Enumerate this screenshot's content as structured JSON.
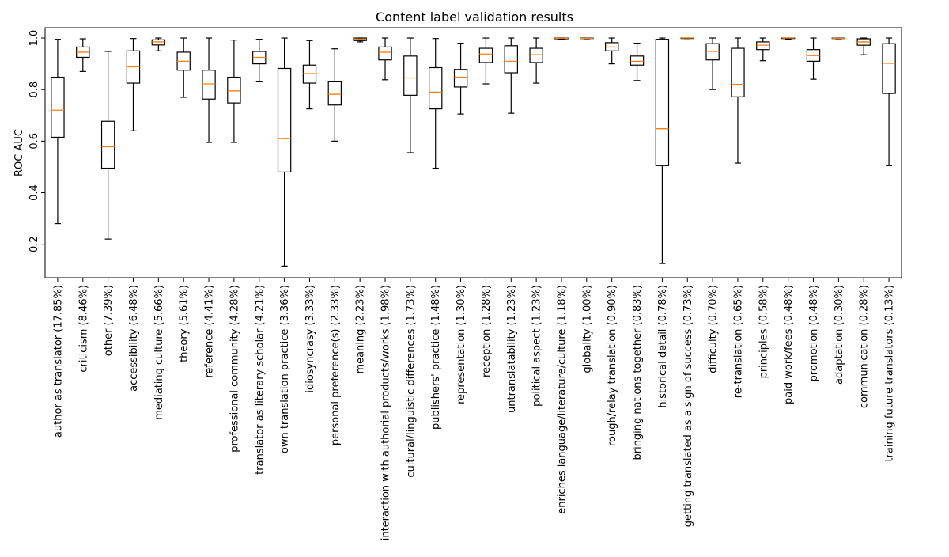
{
  "chart_data": {
    "type": "boxplot",
    "title": "Content label validation results",
    "xlabel": "",
    "ylabel": "ROC AUC",
    "ylim": [
      0.07,
      1.04
    ],
    "yticks": [
      0.2,
      0.4,
      0.6,
      0.8,
      1.0
    ],
    "ytick_labels": [
      "0.2",
      "0.4",
      "0.6",
      "0.8",
      "1.0"
    ],
    "grid": false,
    "colors": {
      "box": "#000000",
      "median": "#ff7f0e"
    },
    "boxes": [
      {
        "label": "author as translator (17.85%)",
        "whislo": 0.28,
        "q1": 0.615,
        "med": 0.72,
        "q3": 0.848,
        "whishi": 0.995
      },
      {
        "label": "criticism (8.46%)",
        "whislo": 0.87,
        "q1": 0.925,
        "med": 0.945,
        "q3": 0.965,
        "whishi": 0.997
      },
      {
        "label": "other (7.39%)",
        "whislo": 0.22,
        "q1": 0.495,
        "med": 0.578,
        "q3": 0.677,
        "whishi": 0.948
      },
      {
        "label": "accessibility (6.48%)",
        "whislo": 0.64,
        "q1": 0.825,
        "med": 0.888,
        "q3": 0.95,
        "whishi": 0.998
      },
      {
        "label": "mediating culture (5.66%)",
        "whislo": 0.95,
        "q1": 0.973,
        "med": 0.985,
        "q3": 0.993,
        "whishi": 1.0
      },
      {
        "label": "theory (5.61%)",
        "whislo": 0.77,
        "q1": 0.875,
        "med": 0.91,
        "q3": 0.945,
        "whishi": 1.0
      },
      {
        "label": "reference (4.41%)",
        "whislo": 0.595,
        "q1": 0.763,
        "med": 0.822,
        "q3": 0.875,
        "whishi": 1.0
      },
      {
        "label": "professional community (4.28%)",
        "whislo": 0.595,
        "q1": 0.748,
        "med": 0.795,
        "q3": 0.848,
        "whishi": 0.992
      },
      {
        "label": "translator as literary scholar (4.21%)",
        "whislo": 0.83,
        "q1": 0.9,
        "med": 0.925,
        "q3": 0.948,
        "whishi": 0.995
      },
      {
        "label": "own translation practice (3.36%)",
        "whislo": 0.115,
        "q1": 0.48,
        "med": 0.61,
        "q3": 0.882,
        "whishi": 1.0
      },
      {
        "label": "idiosyncrasy (3.33%)",
        "whislo": 0.725,
        "q1": 0.825,
        "med": 0.862,
        "q3": 0.895,
        "whishi": 0.99
      },
      {
        "label": "personal preference(s) (2.33%)",
        "whislo": 0.6,
        "q1": 0.74,
        "med": 0.782,
        "q3": 0.83,
        "whishi": 0.958
      },
      {
        "label": "meaning (2.23%)",
        "whislo": 0.985,
        "q1": 0.99,
        "med": 0.995,
        "q3": 1.0,
        "whishi": 1.0
      },
      {
        "label": "interaction with authorial products/works (1.98%)",
        "whislo": 0.838,
        "q1": 0.915,
        "med": 0.945,
        "q3": 0.965,
        "whishi": 1.0
      },
      {
        "label": "cultural/linguistic differences (1.73%)",
        "whislo": 0.555,
        "q1": 0.778,
        "med": 0.845,
        "q3": 0.93,
        "whishi": 1.0
      },
      {
        "label": "publishers' practice (1.48%)",
        "whislo": 0.495,
        "q1": 0.725,
        "med": 0.79,
        "q3": 0.885,
        "whishi": 0.998
      },
      {
        "label": "representation (1.30%)",
        "whislo": 0.705,
        "q1": 0.81,
        "med": 0.848,
        "q3": 0.878,
        "whishi": 0.98
      },
      {
        "label": "reception (1.28%)",
        "whislo": 0.822,
        "q1": 0.905,
        "med": 0.938,
        "q3": 0.96,
        "whishi": 1.0
      },
      {
        "label": "untranslatability (1.23%)",
        "whislo": 0.708,
        "q1": 0.865,
        "med": 0.91,
        "q3": 0.97,
        "whishi": 1.0
      },
      {
        "label": "political aspect (1.23%)",
        "whislo": 0.825,
        "q1": 0.905,
        "med": 0.935,
        "q3": 0.96,
        "whishi": 1.0
      },
      {
        "label": "enriches language/literature/culture (1.18%)",
        "whislo": 0.995,
        "q1": 0.997,
        "med": 0.999,
        "q3": 1.0,
        "whishi": 1.0
      },
      {
        "label": "globality (1.00%)",
        "whislo": 0.997,
        "q1": 0.998,
        "med": 0.999,
        "q3": 1.0,
        "whishi": 1.0
      },
      {
        "label": "rough/relay translation (0.90%)",
        "whislo": 0.9,
        "q1": 0.95,
        "med": 0.965,
        "q3": 0.982,
        "whishi": 1.0
      },
      {
        "label": "bringing nations together (0.83%)",
        "whislo": 0.835,
        "q1": 0.895,
        "med": 0.91,
        "q3": 0.93,
        "whishi": 0.98
      },
      {
        "label": "historical detail (0.78%)",
        "whislo": 0.125,
        "q1": 0.505,
        "med": 0.648,
        "q3": 0.995,
        "whishi": 1.0
      },
      {
        "label": "getting translated as a sign of success (0.73%)",
        "whislo": 0.998,
        "q1": 0.999,
        "med": 1.0,
        "q3": 1.0,
        "whishi": 1.0
      },
      {
        "label": "difficulty (0.70%)",
        "whislo": 0.8,
        "q1": 0.915,
        "med": 0.948,
        "q3": 0.978,
        "whishi": 1.0
      },
      {
        "label": "re-translation (0.65%)",
        "whislo": 0.515,
        "q1": 0.772,
        "med": 0.82,
        "q3": 0.96,
        "whishi": 1.0
      },
      {
        "label": "principles (0.58%)",
        "whislo": 0.912,
        "q1": 0.955,
        "med": 0.972,
        "q3": 0.985,
        "whishi": 1.0
      },
      {
        "label": "paid work/fees (0.48%)",
        "whislo": 0.995,
        "q1": 0.998,
        "med": 1.0,
        "q3": 1.0,
        "whishi": 1.0
      },
      {
        "label": "promotion (0.48%)",
        "whislo": 0.84,
        "q1": 0.91,
        "med": 0.932,
        "q3": 0.955,
        "whishi": 1.0
      },
      {
        "label": "adaptation (0.30%)",
        "whislo": 0.997,
        "q1": 0.998,
        "med": 0.999,
        "q3": 1.0,
        "whishi": 1.0
      },
      {
        "label": "communication (0.28%)",
        "whislo": 0.935,
        "q1": 0.972,
        "med": 0.985,
        "q3": 0.997,
        "whishi": 1.0
      },
      {
        "label": "training future translators (0.13%)",
        "whislo": 0.505,
        "q1": 0.785,
        "med": 0.902,
        "q3": 0.978,
        "whishi": 1.0
      }
    ]
  }
}
